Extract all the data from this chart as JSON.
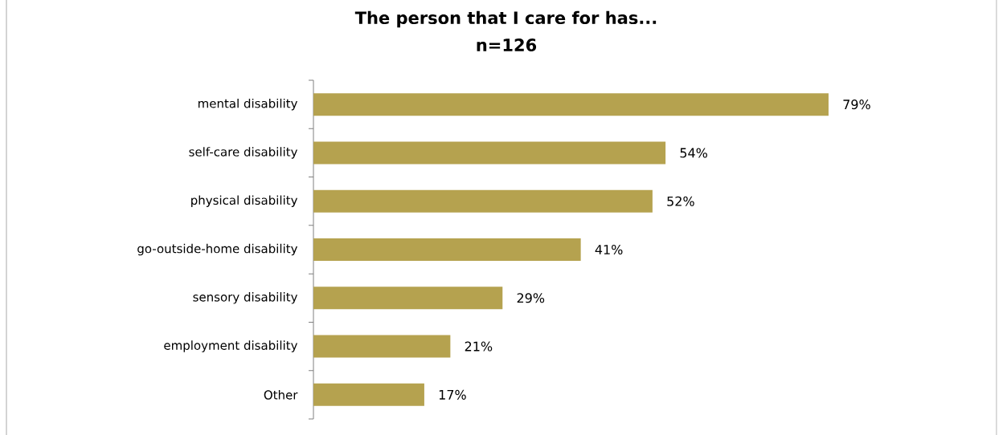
{
  "chart_data": {
    "type": "bar",
    "orientation": "horizontal",
    "title": "The person that I care for has...",
    "subtitle": "n=126",
    "categories": [
      "mental disability",
      "self-care disability",
      "physical disability",
      "go-outside-home disability",
      "sensory disability",
      "employment disability",
      "Other"
    ],
    "values": [
      79,
      54,
      52,
      41,
      29,
      21,
      17
    ],
    "value_labels": [
      "79%",
      "54%",
      "52%",
      "41%",
      "29%",
      "21%",
      "17%"
    ],
    "color": "#b5a24f"
  }
}
